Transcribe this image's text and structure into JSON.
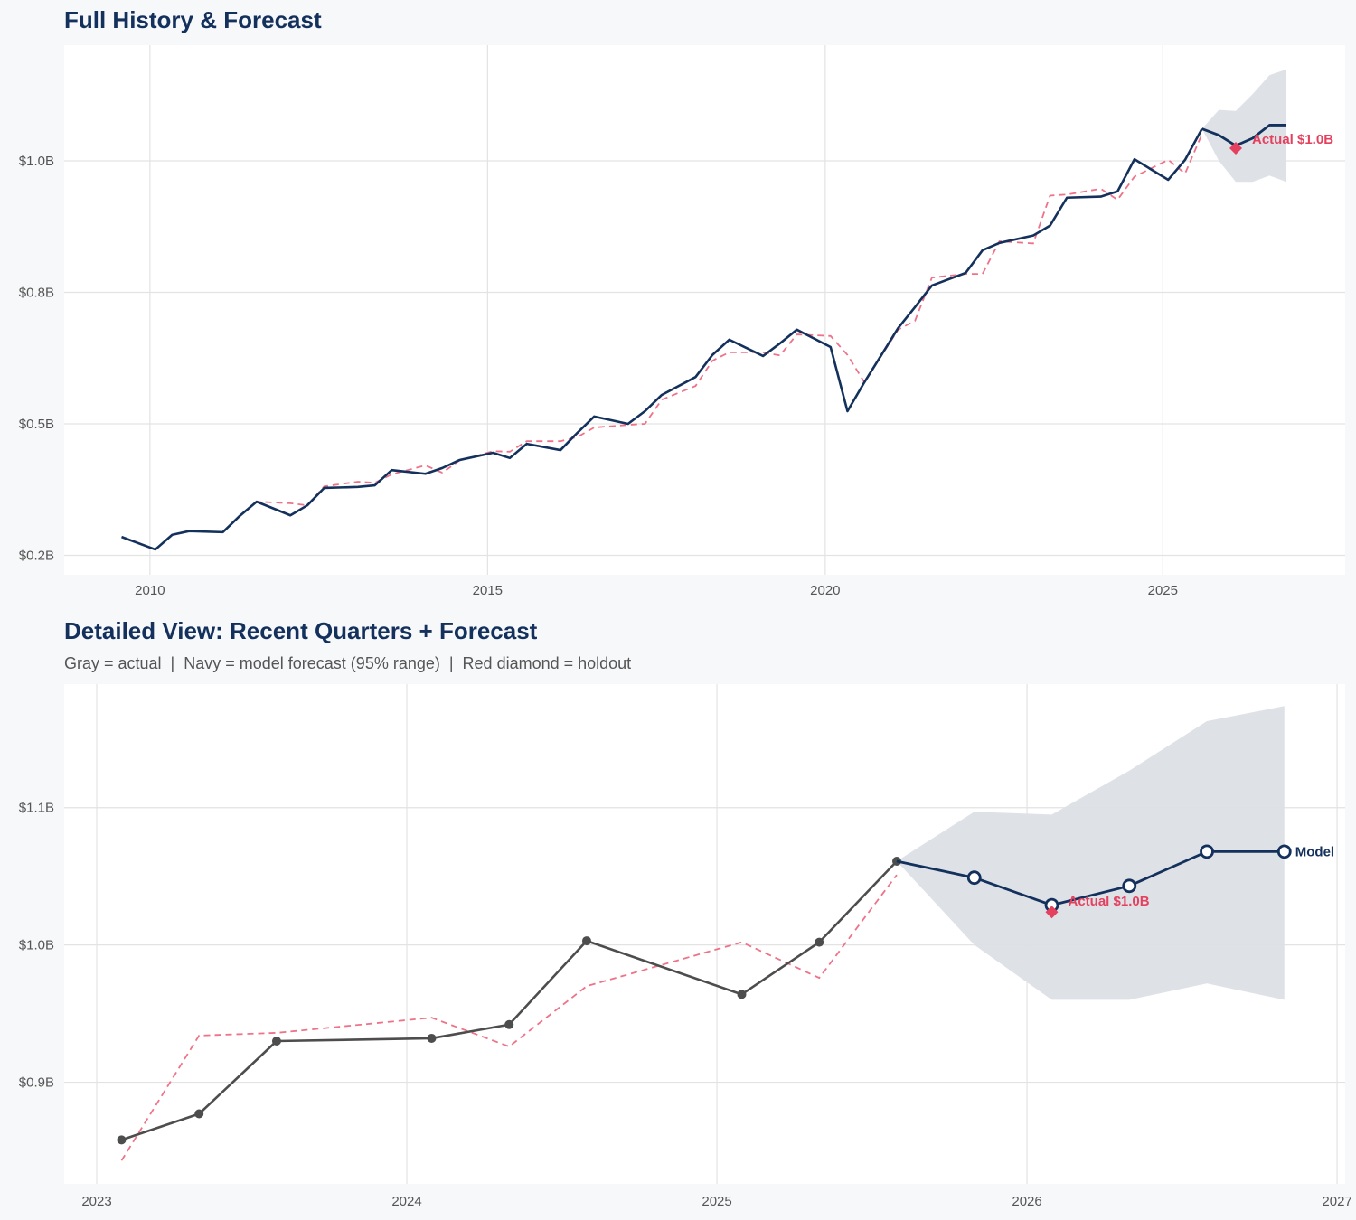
{
  "colors": {
    "background": "#f7f8fa",
    "navy": "#13315c",
    "gray_actual": "#4d4d4d",
    "fitted_dashed": "#ee7389",
    "holdout": "#e5415f",
    "band": "#dce0e6",
    "grid": "#e3e3e3"
  },
  "chart_data": [
    {
      "type": "line",
      "title": "Full History & Forecast",
      "subtitle": "",
      "xlabel": "",
      "ylabel": "",
      "xlim": [
        2008.73,
        2027.7
      ],
      "ylim": [
        0.213,
        1.22
      ],
      "grid": true,
      "x_ticks": [
        {
          "value": 2010,
          "label": "2010"
        },
        {
          "value": 2015,
          "label": "2015"
        },
        {
          "value": 2020,
          "label": "2020"
        },
        {
          "value": 2025,
          "label": "2025"
        }
      ],
      "y_ticks": [
        {
          "value": 0.25,
          "label": "$0.2B"
        },
        {
          "value": 0.5,
          "label": "$0.5B"
        },
        {
          "value": 0.75,
          "label": "$0.8B"
        },
        {
          "value": 1.0,
          "label": "$1.0B"
        }
      ],
      "actual": {
        "color": "#13315c",
        "markers": false,
        "x": [
          2009.58,
          2010.08,
          2010.33,
          2010.58,
          2011.08,
          2011.33,
          2011.58,
          2012.08,
          2012.33,
          2012.58,
          2013.08,
          2013.33,
          2013.58,
          2014.08,
          2014.33,
          2014.58,
          2015.08,
          2015.33,
          2015.58,
          2016.08,
          2016.33,
          2016.58,
          2017.08,
          2017.33,
          2017.58,
          2018.08,
          2018.33,
          2018.58,
          2019.08,
          2019.33,
          2019.58,
          2020.08,
          2020.33,
          2020.58,
          2021.08,
          2021.33,
          2021.58,
          2022.08,
          2022.33,
          2022.58,
          2023.08,
          2023.33,
          2023.58,
          2024.08,
          2024.33,
          2024.58,
          2025.08,
          2025.33,
          2025.58
        ],
        "y": [
          0.285,
          0.261,
          0.289,
          0.296,
          0.294,
          0.325,
          0.352,
          0.326,
          0.345,
          0.378,
          0.38,
          0.383,
          0.412,
          0.405,
          0.416,
          0.431,
          0.445,
          0.435,
          0.462,
          0.45,
          0.483,
          0.514,
          0.5,
          0.524,
          0.555,
          0.589,
          0.631,
          0.66,
          0.629,
          0.653,
          0.679,
          0.646,
          0.524,
          0.579,
          0.682,
          0.722,
          0.763,
          0.787,
          0.83,
          0.844,
          0.858,
          0.877,
          0.93,
          0.932,
          0.942,
          1.003,
          0.964,
          1.002,
          1.061
        ]
      },
      "fitted": {
        "color": "#ee7389",
        "x": [
          2011.08,
          2011.33,
          2011.58,
          2012.08,
          2012.33,
          2012.58,
          2013.08,
          2013.33,
          2013.58,
          2014.08,
          2014.33,
          2014.58,
          2015.08,
          2015.33,
          2015.58,
          2016.08,
          2016.33,
          2016.58,
          2017.08,
          2017.33,
          2017.58,
          2018.08,
          2018.33,
          2018.58,
          2019.08,
          2019.33,
          2019.58,
          2020.08,
          2020.33,
          2020.58,
          2021.08,
          2021.33,
          2021.58,
          2022.08,
          2022.33,
          2022.58,
          2023.08,
          2023.33,
          2023.58,
          2024.08,
          2024.33,
          2024.58,
          2025.08,
          2025.33,
          2025.58
        ],
        "y": [
          0.294,
          0.325,
          0.352,
          0.349,
          0.345,
          0.381,
          0.39,
          0.388,
          0.404,
          0.421,
          0.407,
          0.43,
          0.448,
          0.447,
          0.467,
          0.467,
          0.475,
          0.493,
          0.498,
          0.5,
          0.546,
          0.572,
          0.62,
          0.636,
          0.636,
          0.63,
          0.67,
          0.667,
          0.631,
          0.579,
          0.679,
          0.696,
          0.778,
          0.785,
          0.785,
          0.847,
          0.843,
          0.934,
          0.936,
          0.947,
          0.926,
          0.97,
          1.002,
          0.976,
          1.051
        ]
      },
      "forecast": {
        "color": "#13315c",
        "markers": false,
        "label": "",
        "x": [
          2025.58,
          2025.83,
          2026.08,
          2026.33,
          2026.58,
          2026.83
        ],
        "y": [
          1.061,
          1.049,
          1.029,
          1.043,
          1.068,
          1.068
        ],
        "upper": [
          1.061,
          1.097,
          1.095,
          1.127,
          1.163,
          1.174
        ],
        "lower": [
          1.061,
          1.0,
          0.96,
          0.96,
          0.972,
          0.96
        ]
      },
      "holdout": {
        "x": 2026.08,
        "y": 1.024,
        "label": "Actual $1.0B"
      }
    },
    {
      "type": "line",
      "title": "Detailed View: Recent Quarters + Forecast",
      "subtitle": "Gray = actual  |  Navy = model forecast (95% range)  |  Red diamond = holdout",
      "xlabel": "",
      "ylabel": "",
      "xlim": [
        2022.895,
        2027.026
      ],
      "ylim": [
        0.826,
        1.19
      ],
      "grid": true,
      "x_ticks": [
        {
          "value": 2023,
          "label": "2023"
        },
        {
          "value": 2024,
          "label": "2024"
        },
        {
          "value": 2025,
          "label": "2025"
        },
        {
          "value": 2026,
          "label": "2026"
        },
        {
          "value": 2027,
          "label": "2027"
        }
      ],
      "y_ticks": [
        {
          "value": 0.9,
          "label": "$0.9B"
        },
        {
          "value": 1.0,
          "label": "$1.0B"
        },
        {
          "value": 1.1,
          "label": "$1.1B"
        }
      ],
      "actual": {
        "color": "#4d4d4d",
        "markers": true,
        "x": [
          2023.08,
          2023.33,
          2023.58,
          2024.08,
          2024.33,
          2024.58,
          2025.08,
          2025.33,
          2025.58
        ],
        "y": [
          0.858,
          0.877,
          0.93,
          0.932,
          0.942,
          1.003,
          0.964,
          1.002,
          1.061
        ]
      },
      "fitted": {
        "color": "#ee7389",
        "x": [
          2023.08,
          2023.33,
          2023.58,
          2024.08,
          2024.33,
          2024.58,
          2025.08,
          2025.33,
          2025.58
        ],
        "y": [
          0.843,
          0.934,
          0.936,
          0.947,
          0.926,
          0.97,
          1.002,
          0.976,
          1.051
        ]
      },
      "forecast": {
        "color": "#13315c",
        "markers": true,
        "label": "Model",
        "x": [
          2025.58,
          2025.83,
          2026.08,
          2026.33,
          2026.58,
          2026.83
        ],
        "y": [
          1.061,
          1.049,
          1.029,
          1.043,
          1.068,
          1.068
        ],
        "upper": [
          1.061,
          1.097,
          1.095,
          1.127,
          1.163,
          1.174
        ],
        "lower": [
          1.061,
          1.0,
          0.96,
          0.96,
          0.972,
          0.96
        ]
      },
      "holdout": {
        "x": 2026.08,
        "y": 1.024,
        "label": "Actual $1.0B"
      }
    }
  ]
}
